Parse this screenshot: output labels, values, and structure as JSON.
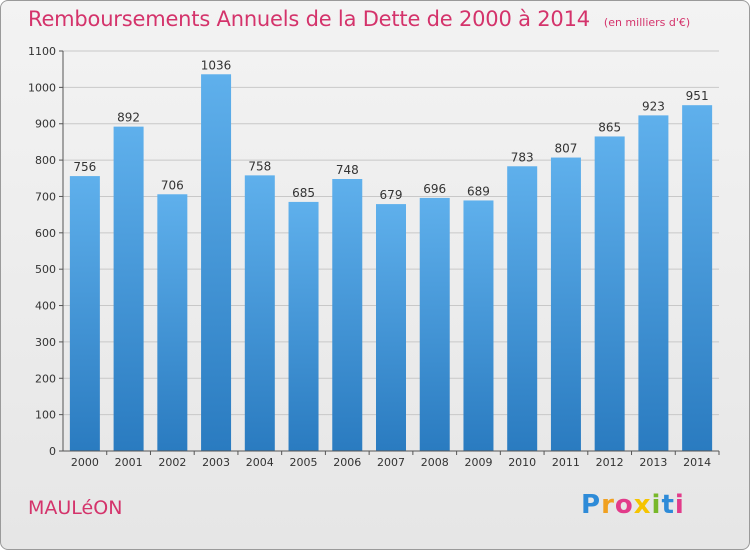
{
  "title": "Remboursements Annuels de la Dette de 2000 à 2014",
  "subtitle": "(en milliers d'€)",
  "commune": "MAULéON",
  "brand": {
    "letters": [
      {
        "char": "P",
        "color": "#2e8bd8"
      },
      {
        "char": "r",
        "color": "#f0a020"
      },
      {
        "char": "o",
        "color": "#e23b8a"
      },
      {
        "char": "x",
        "color": "#f5c400"
      },
      {
        "char": "i",
        "color": "#78b82a"
      },
      {
        "char": "t",
        "color": "#2e8bd8"
      },
      {
        "char": "i",
        "color": "#e23b8a"
      }
    ]
  },
  "colors": {
    "bar_light": "#5fb0ec",
    "bar_dark": "#2a7bc0",
    "title": "#d4336b"
  },
  "chart_data": {
    "type": "bar",
    "categories": [
      "2000",
      "2001",
      "2002",
      "2003",
      "2004",
      "2005",
      "2006",
      "2007",
      "2008",
      "2009",
      "2010",
      "2011",
      "2012",
      "2013",
      "2014"
    ],
    "values": [
      756,
      892,
      706,
      1036,
      758,
      685,
      748,
      679,
      696,
      689,
      783,
      807,
      865,
      923,
      951
    ],
    "title": "Remboursements Annuels de la Dette de 2000 à 2014",
    "subtitle": "(en milliers d'€)",
    "xlabel": "",
    "ylabel": "",
    "ylim": [
      0,
      1100
    ],
    "yticks": [
      0,
      100,
      200,
      300,
      400,
      500,
      600,
      700,
      800,
      900,
      1000,
      1100
    ],
    "grid": true,
    "legend": "none"
  }
}
